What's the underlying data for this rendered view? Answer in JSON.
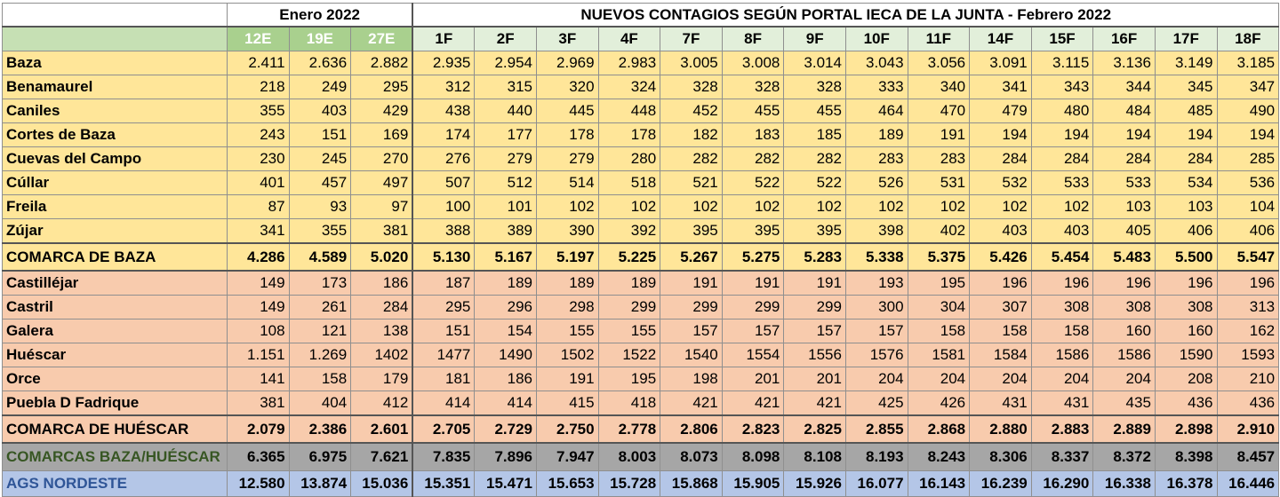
{
  "header": {
    "january_title": "Enero 2022",
    "february_title": "NUEVOS CONTAGIOS  SEGÚN PORTAL IECA DE LA JUNTA - Febrero 2022"
  },
  "columns": [
    "12E",
    "19E",
    "27E",
    "1F",
    "2F",
    "3F",
    "4F",
    "7F",
    "8F",
    "9F",
    "10F",
    "11F",
    "14F",
    "15F",
    "16F",
    "17F",
    "18F"
  ],
  "rows": [
    {
      "name": "Baza",
      "group": "baza",
      "values": [
        "2.411",
        "2.636",
        "2.882",
        "2.935",
        "2.954",
        "2.969",
        "2.983",
        "3.005",
        "3.008",
        "3.014",
        "3.043",
        "3.056",
        "3.091",
        "3.115",
        "3.136",
        "3.149",
        "3.185"
      ]
    },
    {
      "name": "Benamaurel",
      "group": "baza",
      "values": [
        "218",
        "249",
        "295",
        "312",
        "315",
        "320",
        "324",
        "328",
        "328",
        "328",
        "333",
        "340",
        "341",
        "343",
        "344",
        "345",
        "347"
      ]
    },
    {
      "name": "Caniles",
      "group": "baza",
      "values": [
        "355",
        "403",
        "429",
        "438",
        "440",
        "445",
        "448",
        "452",
        "455",
        "455",
        "464",
        "470",
        "479",
        "480",
        "484",
        "485",
        "490"
      ]
    },
    {
      "name": "Cortes de Baza",
      "group": "baza",
      "values": [
        "243",
        "151",
        "169",
        "174",
        "177",
        "178",
        "178",
        "182",
        "183",
        "185",
        "189",
        "191",
        "194",
        "194",
        "194",
        "194",
        "194"
      ]
    },
    {
      "name": "Cuevas del Campo",
      "group": "baza",
      "values": [
        "230",
        "245",
        "270",
        "276",
        "279",
        "279",
        "280",
        "282",
        "282",
        "282",
        "283",
        "283",
        "284",
        "284",
        "284",
        "284",
        "285"
      ]
    },
    {
      "name": "Cúllar",
      "group": "baza",
      "values": [
        "401",
        "457",
        "497",
        "507",
        "512",
        "514",
        "518",
        "521",
        "522",
        "522",
        "526",
        "531",
        "532",
        "533",
        "533",
        "534",
        "536"
      ]
    },
    {
      "name": "Freila",
      "group": "baza",
      "values": [
        "87",
        "93",
        "97",
        "100",
        "101",
        "102",
        "102",
        "102",
        "102",
        "102",
        "102",
        "102",
        "102",
        "102",
        "103",
        "103",
        "104"
      ]
    },
    {
      "name": "Zújar",
      "group": "baza",
      "values": [
        "341",
        "355",
        "381",
        "388",
        "389",
        "390",
        "392",
        "395",
        "395",
        "395",
        "398",
        "402",
        "403",
        "403",
        "405",
        "406",
        "406"
      ]
    },
    {
      "name": "COMARCA DE BAZA",
      "group": "baza-total",
      "values": [
        "4.286",
        "4.589",
        "5.020",
        "5.130",
        "5.167",
        "5.197",
        "5.225",
        "5.267",
        "5.275",
        "5.283",
        "5.338",
        "5.375",
        "5.426",
        "5.454",
        "5.483",
        "5.500",
        "5.547"
      ]
    },
    {
      "name": "Castilléjar",
      "group": "hue",
      "values": [
        "149",
        "173",
        "186",
        "187",
        "189",
        "189",
        "189",
        "191",
        "191",
        "191",
        "193",
        "195",
        "196",
        "196",
        "196",
        "196",
        "196"
      ]
    },
    {
      "name": "Castril",
      "group": "hue",
      "values": [
        "149",
        "261",
        "284",
        "295",
        "296",
        "298",
        "299",
        "299",
        "299",
        "299",
        "300",
        "304",
        "307",
        "308",
        "308",
        "308",
        "313"
      ]
    },
    {
      "name": "Galera",
      "group": "hue",
      "values": [
        "108",
        "121",
        "138",
        "151",
        "154",
        "155",
        "155",
        "157",
        "157",
        "157",
        "157",
        "158",
        "158",
        "158",
        "160",
        "160",
        "162"
      ]
    },
    {
      "name": "Huéscar",
      "group": "hue",
      "values": [
        "1.151",
        "1.269",
        "1402",
        "1477",
        "1490",
        "1502",
        "1522",
        "1540",
        "1554",
        "1556",
        "1576",
        "1581",
        "1584",
        "1586",
        "1586",
        "1590",
        "1593"
      ]
    },
    {
      "name": "Orce",
      "group": "hue",
      "values": [
        "141",
        "158",
        "179",
        "181",
        "186",
        "191",
        "195",
        "198",
        "201",
        "201",
        "204",
        "204",
        "204",
        "204",
        "204",
        "208",
        "210"
      ]
    },
    {
      "name": "Puebla D Fadrique",
      "group": "hue",
      "values": [
        "381",
        "404",
        "412",
        "414",
        "414",
        "415",
        "418",
        "421",
        "421",
        "421",
        "425",
        "426",
        "431",
        "431",
        "435",
        "436",
        "436"
      ]
    },
    {
      "name": "COMARCA DE HUÉSCAR",
      "group": "hue-total",
      "values": [
        "2.079",
        "2.386",
        "2.601",
        "2.705",
        "2.729",
        "2.750",
        "2.778",
        "2.806",
        "2.823",
        "2.825",
        "2.855",
        "2.868",
        "2.880",
        "2.883",
        "2.889",
        "2.898",
        "2.910"
      ]
    },
    {
      "name": "COMARCAS BAZA/HUÉSCAR",
      "group": "both",
      "values": [
        "6.365",
        "6.975",
        "7.621",
        "7.835",
        "7.896",
        "7.947",
        "8.003",
        "8.073",
        "8.098",
        "8.108",
        "8.193",
        "8.243",
        "8.306",
        "8.337",
        "8.372",
        "8.398",
        "8.457"
      ]
    },
    {
      "name": "AGS NORDESTE",
      "group": "ags",
      "values": [
        "12.580",
        "13.874",
        "15.036",
        "15.351",
        "15.471",
        "15.653",
        "15.728",
        "15.868",
        "15.905",
        "15.926",
        "16.077",
        "16.143",
        "16.239",
        "16.290",
        "16.338",
        "16.378",
        "16.446"
      ]
    }
  ],
  "colors": {
    "baza_rows": "#ffe699",
    "huescar_rows": "#f8cbad",
    "combined_row": "#a6a6a6",
    "ags_row": "#b4c6e7",
    "january_header": "#a9d08e",
    "february_header": "#e2efda"
  }
}
